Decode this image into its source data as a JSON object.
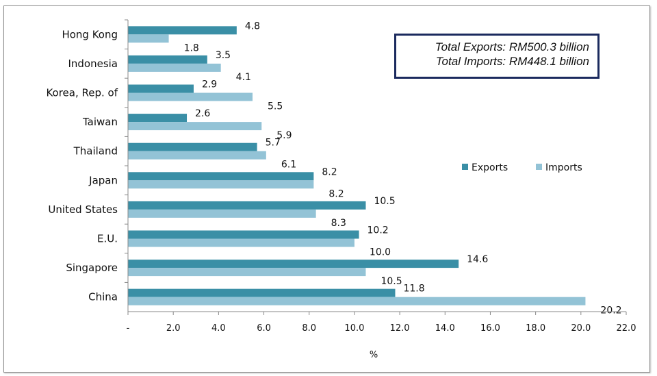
{
  "chart_data": {
    "type": "bar",
    "orientation": "horizontal",
    "title": "",
    "xlabel": "%",
    "ylabel": "",
    "xlim": [
      0,
      22
    ],
    "x_ticks": [
      "-",
      "2.0",
      "4.0",
      "6.0",
      "8.0",
      "10.0",
      "12.0",
      "14.0",
      "16.0",
      "18.0",
      "20.0",
      "22.0"
    ],
    "x_tick_values": [
      0,
      2,
      4,
      6,
      8,
      10,
      12,
      14,
      16,
      18,
      20,
      22
    ],
    "grid": false,
    "legend_position": "right",
    "categories": [
      "Hong Kong",
      "Indonesia",
      "Korea, Rep. of",
      "Taiwan",
      "Thailand",
      "Japan",
      "United States",
      "E.U.",
      "Singapore",
      "China"
    ],
    "series": [
      {
        "name": "Exports",
        "color": "#3a8fa6",
        "values": [
          4.8,
          3.5,
          2.9,
          2.6,
          5.7,
          8.2,
          10.5,
          10.2,
          14.6,
          11.8
        ],
        "labels": [
          "4.8",
          "3.5",
          "2.9",
          "2.6",
          "5.7",
          "8.2",
          "10.5",
          "10.2",
          "14.6",
          "11.8"
        ]
      },
      {
        "name": "Imports",
        "color": "#93c3d6",
        "values": [
          1.8,
          4.1,
          5.5,
          5.9,
          6.1,
          8.2,
          8.3,
          10.0,
          10.5,
          20.2
        ],
        "labels": [
          "1.8",
          "4.1",
          "5.5",
          "5.9",
          "6.1",
          "8.2",
          "8.3",
          "10.0",
          "10.5",
          "20.2"
        ]
      }
    ],
    "annotations": [
      "Total Exports: RM500.3 billion",
      "Total Imports: RM448.1 billion"
    ]
  },
  "totals_box": {
    "exports": "Total Exports: RM500.3 billion",
    "imports": "Total Imports: RM448.1 billion"
  }
}
